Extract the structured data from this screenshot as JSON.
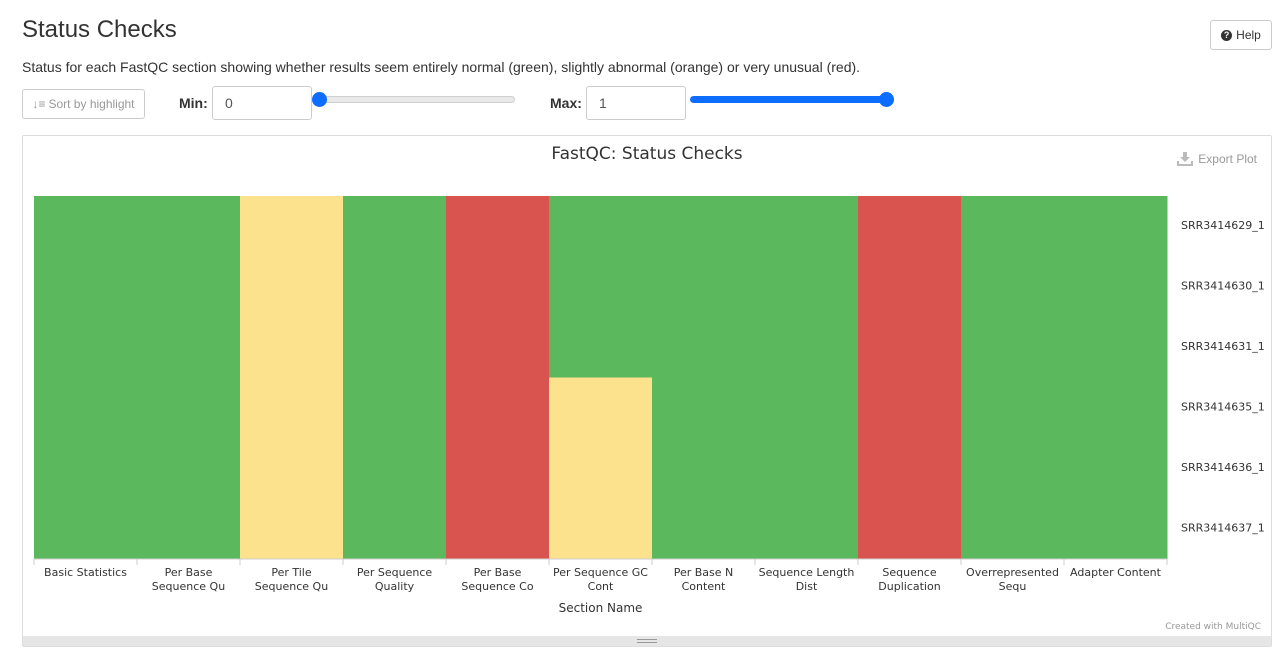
{
  "page": {
    "title": "Status Checks",
    "description": "Status for each FastQC section showing whether results seem entirely normal (green), slightly abnormal (orange) or very unusual (red).",
    "help_label": "Help"
  },
  "controls": {
    "sort_label": "Sort by highlight",
    "min_label": "Min:",
    "min_value": "0",
    "max_label": "Max:",
    "max_value": "1",
    "min_slider_fraction": 0,
    "max_slider_fraction": 1,
    "slider_color": "#0d6efd"
  },
  "plot": {
    "export_label": "Export Plot",
    "credit": "Created with MultiQC"
  },
  "colors": {
    "pass": "#5cb85c",
    "warn": "#fce28d",
    "fail": "#d9534f"
  },
  "chart_data": {
    "type": "heatmap",
    "title": "FastQC: Status Checks",
    "xlabel": "Section Name",
    "ylabel": "",
    "categories": [
      [
        "Basic Statistics"
      ],
      [
        "Per Base",
        "Sequence Qu"
      ],
      [
        "Per Tile",
        "Sequence Qu"
      ],
      [
        "Per Sequence",
        "Quality"
      ],
      [
        "Per Base",
        "Sequence Co"
      ],
      [
        "Per Sequence GC",
        "Cont"
      ],
      [
        "Per Base N",
        "Content"
      ],
      [
        "Sequence Length",
        "Dist"
      ],
      [
        "Sequence",
        "Duplication"
      ],
      [
        "Overrepresented",
        "Sequ"
      ],
      [
        "Adapter Content"
      ]
    ],
    "samples": [
      "SRR3414629_1",
      "SRR3414630_1",
      "SRR3414631_1",
      "SRR3414635_1",
      "SRR3414636_1",
      "SRR3414637_1"
    ],
    "values": [
      [
        "pass",
        "pass",
        "warn",
        "pass",
        "fail",
        "pass",
        "pass",
        "pass",
        "fail",
        "pass",
        "pass"
      ],
      [
        "pass",
        "pass",
        "warn",
        "pass",
        "fail",
        "pass",
        "pass",
        "pass",
        "fail",
        "pass",
        "pass"
      ],
      [
        "pass",
        "pass",
        "warn",
        "pass",
        "fail",
        "pass",
        "pass",
        "pass",
        "fail",
        "pass",
        "pass"
      ],
      [
        "pass",
        "pass",
        "warn",
        "pass",
        "fail",
        "warn",
        "pass",
        "pass",
        "fail",
        "pass",
        "pass"
      ],
      [
        "pass",
        "pass",
        "warn",
        "pass",
        "fail",
        "warn",
        "pass",
        "pass",
        "fail",
        "pass",
        "pass"
      ],
      [
        "pass",
        "pass",
        "warn",
        "pass",
        "fail",
        "warn",
        "pass",
        "pass",
        "fail",
        "pass",
        "pass"
      ]
    ]
  }
}
